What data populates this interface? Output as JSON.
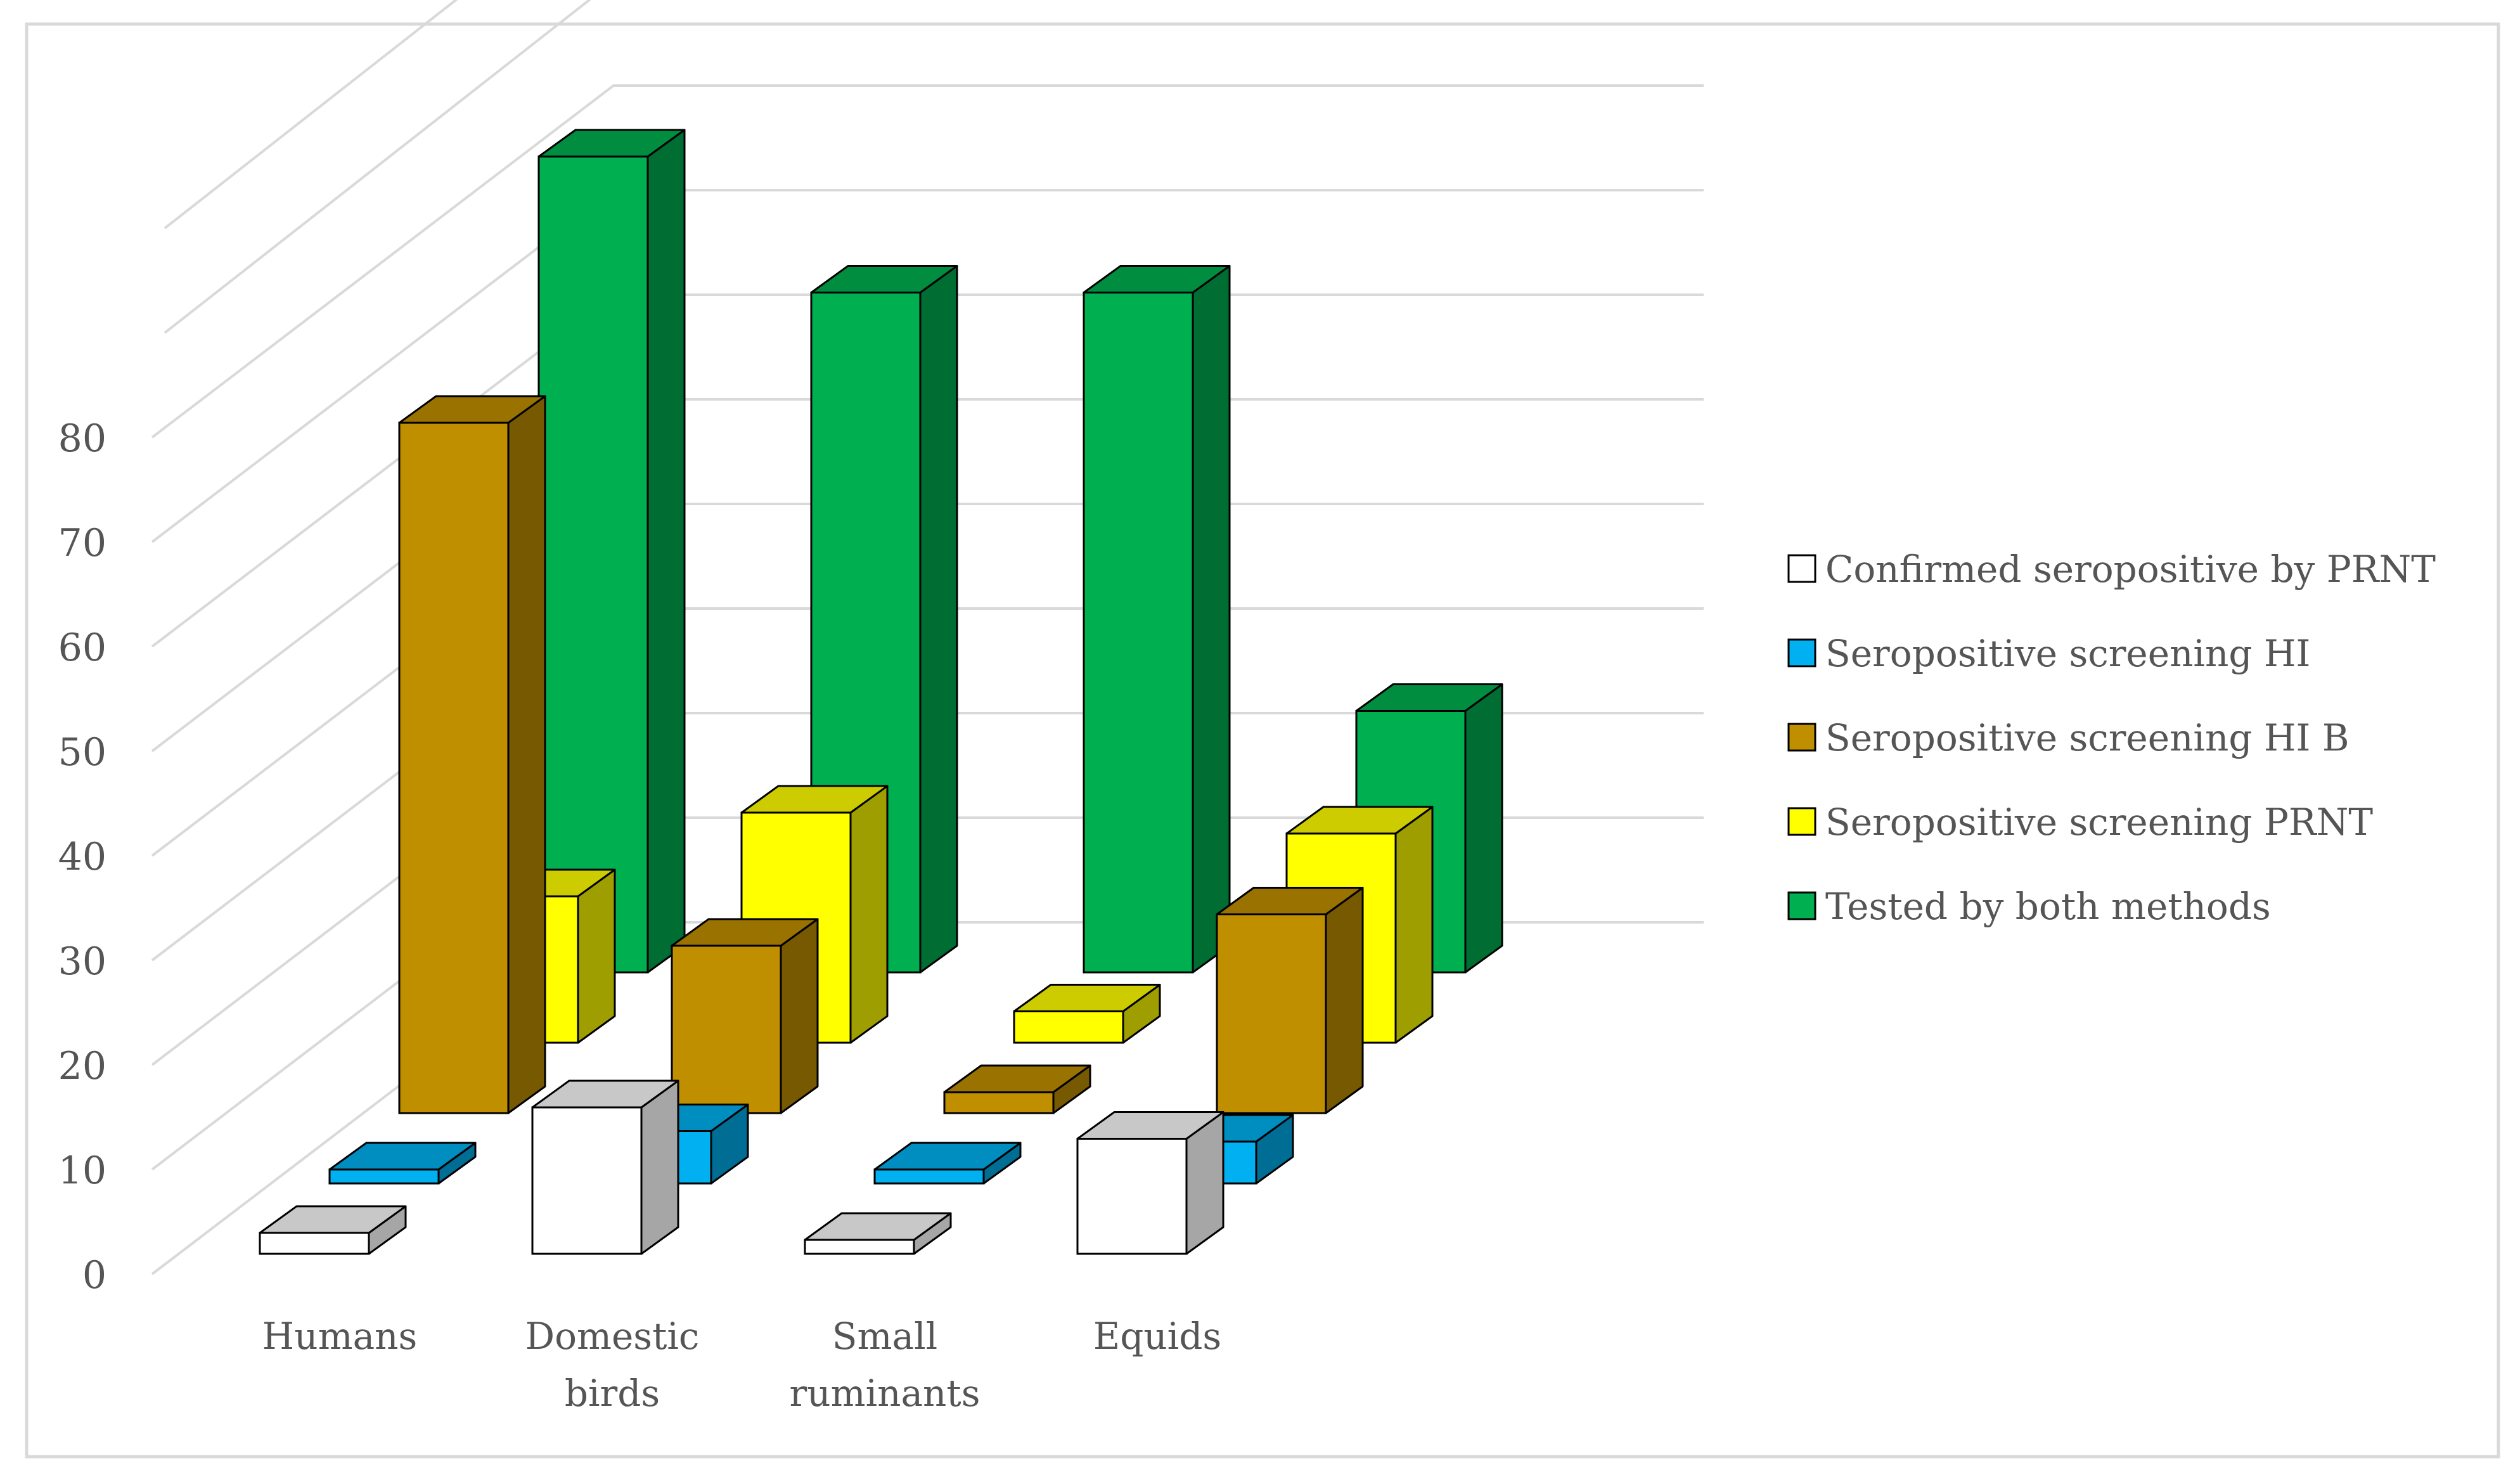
{
  "chart_data": {
    "type": "bar",
    "title": "",
    "xlabel": "",
    "ylabel": "",
    "ylim": [
      0,
      80
    ],
    "yticks": [
      "0",
      "10",
      "20",
      "30",
      "40",
      "50",
      "60",
      "70",
      "80"
    ],
    "categories": [
      {
        "id": "humans",
        "lines": [
          "Humans"
        ]
      },
      {
        "id": "domestic-birds",
        "lines": [
          "Domestic",
          "birds"
        ]
      },
      {
        "id": "small-ruminants",
        "lines": [
          "Small",
          "ruminants"
        ]
      },
      {
        "id": "equids",
        "lines": [
          "Equids"
        ]
      }
    ],
    "series": [
      {
        "name": "Confirmed seropositive by PRNT",
        "color": "#ffffff",
        "values": [
          2,
          14,
          1,
          11
        ]
      },
      {
        "name": "Seropositive screening HI",
        "color": "#00b0f0",
        "values": [
          1,
          5,
          0,
          4
        ]
      },
      {
        "name": "Seropositive screening HI B",
        "color": "#bf8f00",
        "values": [
          66,
          16,
          2,
          19
        ]
      },
      {
        "name": "Seropositive screening PRNT",
        "color": "#ffff00",
        "values": [
          14,
          22,
          3,
          20
        ]
      },
      {
        "name": "Tested by both methods",
        "color": "#00b050",
        "values": [
          78,
          65,
          65,
          25
        ]
      }
    ]
  }
}
